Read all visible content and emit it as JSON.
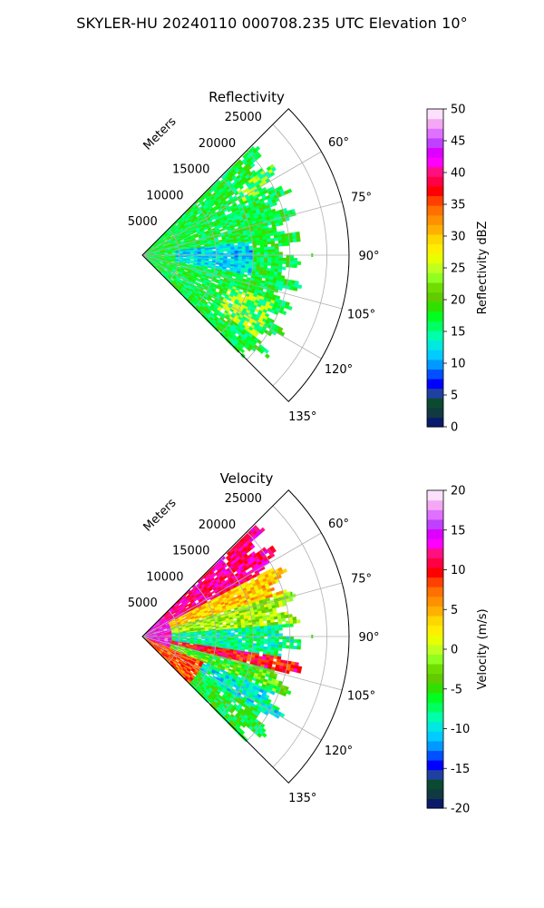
{
  "title": "SKYLER-HU  20240110  000708.235 UTC Elevation 10°",
  "chart_data": [
    {
      "type": "heatmap",
      "subtype": "polar-sector (PPI radar sweep)",
      "title": "Reflectivity",
      "radial_axis_label": "Meters",
      "radial_range": [
        0,
        28000
      ],
      "radial_ticks": [
        5000,
        10000,
        15000,
        20000,
        25000
      ],
      "azimuth_range_deg": [
        45,
        135
      ],
      "azimuth_ticks": [
        "60°",
        "75°",
        "90°",
        "105°",
        "120°",
        "135°"
      ],
      "data_extent_m": 20000,
      "grid": true,
      "colorbar": {
        "label": "Reflectivity dBZ",
        "range": [
          0,
          50
        ],
        "ticks": [
          0,
          5,
          10,
          15,
          20,
          25,
          30,
          35,
          40,
          45,
          50
        ],
        "colors": [
          "#0a1a6a",
          "#103a40",
          "#0a4a30",
          "#2040a0",
          "#0000ff",
          "#0050ff",
          "#0099ff",
          "#00ccff",
          "#00e8e0",
          "#00ffaa",
          "#00ff60",
          "#00ff20",
          "#30e000",
          "#60cc00",
          "#70dd00",
          "#90ff20",
          "#c0ff20",
          "#e8ff00",
          "#ffee00",
          "#ffd700",
          "#ffb000",
          "#ff9000",
          "#ff7000",
          "#ff4000",
          "#ff0000",
          "#ff0044",
          "#ff1080",
          "#ff00ff",
          "#dd00ff",
          "#c040ff",
          "#e070ff",
          "#f4a8f4",
          "#fce0fc"
        ]
      },
      "values_summary": {
        "dominant_dbz": [
          14,
          22
        ],
        "cyan_core_dbz": [
          10,
          14
        ],
        "yellow_patches_dbz": [
          24,
          28
        ]
      }
    },
    {
      "type": "heatmap",
      "subtype": "polar-sector (PPI radar sweep)",
      "title": "Velocity",
      "radial_axis_label": "Meters",
      "radial_range": [
        0,
        28000
      ],
      "radial_ticks": [
        5000,
        10000,
        15000,
        20000,
        25000
      ],
      "azimuth_range_deg": [
        45,
        135
      ],
      "azimuth_ticks": [
        "60°",
        "75°",
        "90°",
        "105°",
        "120°",
        "135°"
      ],
      "data_extent_m": 20000,
      "grid": true,
      "colorbar": {
        "label": "Velocity (m/s)",
        "range": [
          -20,
          20
        ],
        "ticks": [
          -20,
          -15,
          -10,
          -5,
          0,
          5,
          10,
          15,
          20
        ],
        "colors": [
          "#0a1a6a",
          "#103a40",
          "#0a4a30",
          "#2040a0",
          "#0000ff",
          "#0050ff",
          "#0099ff",
          "#00ccff",
          "#00e8e0",
          "#00ffaa",
          "#00ff60",
          "#00ff20",
          "#30e000",
          "#60cc00",
          "#70dd00",
          "#90ff20",
          "#c0ff20",
          "#e8ff00",
          "#ffee00",
          "#ffd700",
          "#ffb000",
          "#ff9000",
          "#ff7000",
          "#ff4000",
          "#ff0000",
          "#ff0044",
          "#ff1080",
          "#ff00ff",
          "#dd00ff",
          "#c040ff",
          "#e070ff",
          "#f4a8f4",
          "#fce0fc"
        ]
      },
      "values_summary": {
        "inbound_band_ms": [
          -12,
          -5
        ],
        "outbound_north_ms": [
          8,
          16
        ],
        "near_radar_ms": [
          12,
          18
        ]
      }
    }
  ]
}
